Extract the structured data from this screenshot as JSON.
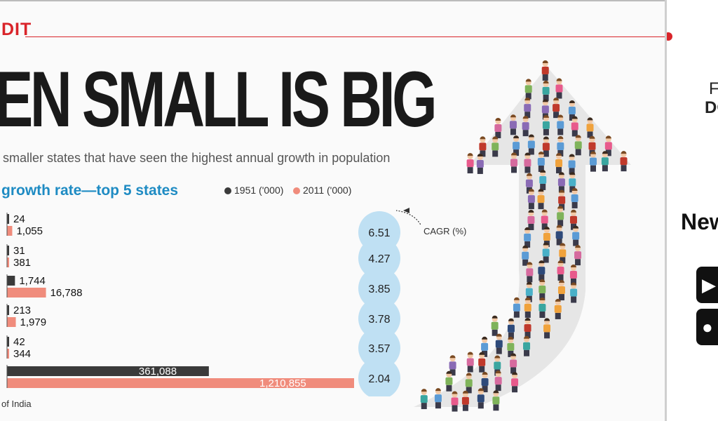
{
  "header": {
    "edit_tag": "DIT",
    "headline": "EN SMALL IS BIG",
    "subhead": "smaller states that have seen the highest annual growth in population"
  },
  "chart_data": {
    "type": "bar",
    "orientation": "horizontal",
    "title": "growth rate—top 5 states",
    "categories": [
      "",
      "",
      "",
      "",
      "",
      ""
    ],
    "series": [
      {
        "name": "1951 ('000)",
        "color": "#3a3a3a",
        "values": [
          24,
          31,
          1744,
          213,
          42,
          361088
        ],
        "labels": [
          "24",
          "31",
          "1,744",
          "213",
          "42",
          "361,088"
        ]
      },
      {
        "name": "2011 ('000)",
        "color": "#f08c7c",
        "values": [
          1055,
          381,
          16788,
          1979,
          344,
          1210855
        ],
        "labels": [
          "1,055",
          "381",
          "16,788",
          "1,979",
          "344",
          "1,210,855"
        ]
      }
    ],
    "cagr_label": "CAGR (%)",
    "cagr": [
      "6.51",
      "4.27",
      "3.85",
      "3.78",
      "3.57",
      "2.04"
    ],
    "legend_position": "top",
    "source": "of India",
    "grid": false
  },
  "sidebar": {
    "text1": "F",
    "text2": "DO",
    "text3": "New",
    "store1_icon": "play-store-icon",
    "store2_icon": "apple-icon"
  },
  "colors": {
    "accent_red": "#d9242a",
    "title_blue": "#1e8bc3",
    "bubble": "#bfe0f3",
    "arrow": "#d9d9d9"
  }
}
